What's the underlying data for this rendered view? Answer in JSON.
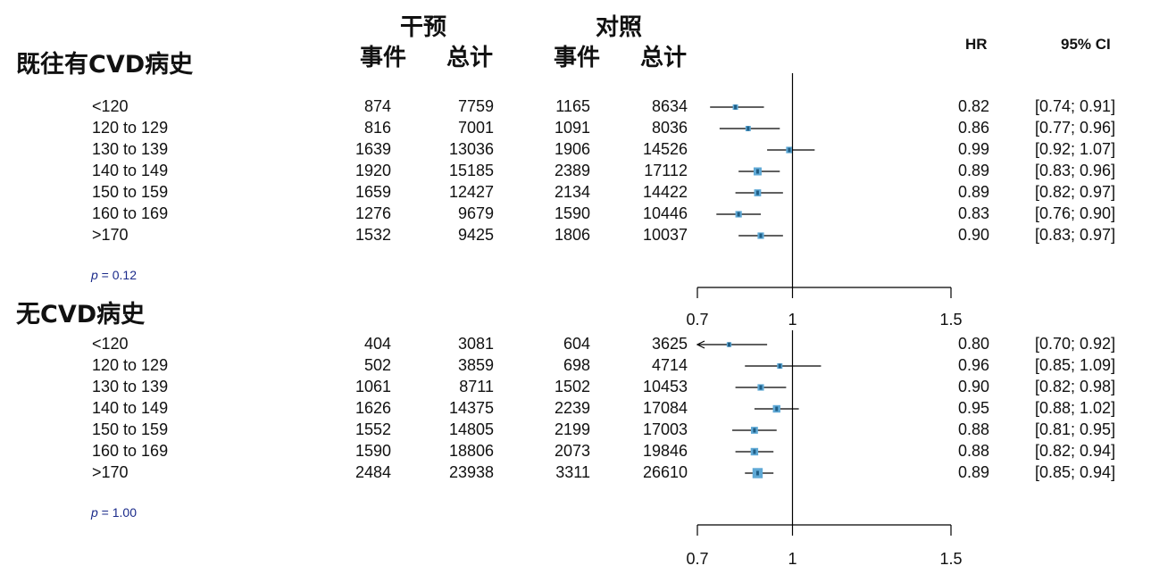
{
  "header": {
    "intervention_label": "干预",
    "control_label": "对照",
    "events_label": "事件",
    "total_label": "总计",
    "hr_label": "HR",
    "ci_label": "95% CI"
  },
  "chart_data": {
    "type": "forest",
    "x_axis": {
      "ticks": [
        "0.7",
        "1",
        "1.5"
      ],
      "reference_line": 1,
      "xlim": [
        0.7,
        1.5
      ]
    },
    "sections": [
      {
        "title": "既往有CVD病史",
        "p_value_label": "p",
        "p_value_text": " = 0.12",
        "rows": [
          {
            "label": "<120",
            "int_events": "874",
            "int_total": "7759",
            "ctl_events": "1165",
            "ctl_total": "8634",
            "hr": 0.82,
            "lo": 0.74,
            "hi": 0.91,
            "hr_text": "0.82",
            "ci_text": "[0.74; 0.91]",
            "weight": 0.5
          },
          {
            "label": "120 to 129",
            "int_events": "816",
            "int_total": "7001",
            "ctl_events": "1091",
            "ctl_total": "8036",
            "hr": 0.86,
            "lo": 0.77,
            "hi": 0.96,
            "hr_text": "0.86",
            "ci_text": "[0.77; 0.96]",
            "weight": 0.5
          },
          {
            "label": "130 to 139",
            "int_events": "1639",
            "int_total": "13036",
            "ctl_events": "1906",
            "ctl_total": "14526",
            "hr": 0.99,
            "lo": 0.92,
            "hi": 1.07,
            "hr_text": "0.99",
            "ci_text": "[0.92; 1.07]",
            "weight": 0.7
          },
          {
            "label": "140 to 149",
            "int_events": "1920",
            "int_total": "15185",
            "ctl_events": "2389",
            "ctl_total": "17112",
            "hr": 0.89,
            "lo": 0.83,
            "hi": 0.96,
            "hr_text": "0.89",
            "ci_text": "[0.83; 0.96]",
            "weight": 1.0
          },
          {
            "label": "150 to 159",
            "int_events": "1659",
            "int_total": "12427",
            "ctl_events": "2134",
            "ctl_total": "14422",
            "hr": 0.89,
            "lo": 0.82,
            "hi": 0.97,
            "hr_text": "0.89",
            "ci_text": "[0.82; 0.97]",
            "weight": 0.8
          },
          {
            "label": "160 to 169",
            "int_events": "1276",
            "int_total": "9679",
            "ctl_events": "1590",
            "ctl_total": "10446",
            "hr": 0.83,
            "lo": 0.76,
            "hi": 0.9,
            "hr_text": "0.83",
            "ci_text": "[0.76; 0.90]",
            "weight": 0.7
          },
          {
            "label": ">170",
            "int_events": "1532",
            "int_total": "9425",
            "ctl_events": "1806",
            "ctl_total": "10037",
            "hr": 0.9,
            "lo": 0.83,
            "hi": 0.97,
            "hr_text": "0.90",
            "ci_text": "[0.83; 0.97]",
            "weight": 0.7
          }
        ]
      },
      {
        "title": "无CVD病史",
        "p_value_label": "p",
        "p_value_text": " = 1.00",
        "rows": [
          {
            "label": "<120",
            "int_events": "404",
            "int_total": "3081",
            "ctl_events": "604",
            "ctl_total": "3625",
            "hr": 0.8,
            "lo": 0.7,
            "hi": 0.92,
            "hr_text": "0.80",
            "ci_text": "[0.70; 0.92]",
            "weight": 0.4,
            "arrow_left": true
          },
          {
            "label": "120 to 129",
            "int_events": "502",
            "int_total": "3859",
            "ctl_events": "698",
            "ctl_total": "4714",
            "hr": 0.96,
            "lo": 0.85,
            "hi": 1.09,
            "hr_text": "0.96",
            "ci_text": "[0.85; 1.09]",
            "weight": 0.5
          },
          {
            "label": "130 to 139",
            "int_events": "1061",
            "int_total": "8711",
            "ctl_events": "1502",
            "ctl_total": "10453",
            "hr": 0.9,
            "lo": 0.82,
            "hi": 0.98,
            "hr_text": "0.90",
            "ci_text": "[0.82; 0.98]",
            "weight": 0.7
          },
          {
            "label": "140 to 149",
            "int_events": "1626",
            "int_total": "14375",
            "ctl_events": "2239",
            "ctl_total": "17084",
            "hr": 0.95,
            "lo": 0.88,
            "hi": 1.02,
            "hr_text": "0.95",
            "ci_text": "[0.88; 1.02]",
            "weight": 0.9
          },
          {
            "label": "150 to 159",
            "int_events": "1552",
            "int_total": "14805",
            "ctl_events": "2199",
            "ctl_total": "17003",
            "hr": 0.88,
            "lo": 0.81,
            "hi": 0.95,
            "hr_text": "0.88",
            "ci_text": "[0.81; 0.95]",
            "weight": 0.8
          },
          {
            "label": "160 to 169",
            "int_events": "1590",
            "int_total": "18806",
            "ctl_events": "2073",
            "ctl_total": "19846",
            "hr": 0.88,
            "lo": 0.82,
            "hi": 0.94,
            "hr_text": "0.88",
            "ci_text": "[0.82; 0.94]",
            "weight": 0.9
          },
          {
            "label": ">170",
            "int_events": "2484",
            "int_total": "23938",
            "ctl_events": "3311",
            "ctl_total": "26610",
            "hr": 0.89,
            "lo": 0.85,
            "hi": 0.94,
            "hr_text": "0.89",
            "ci_text": "[0.85; 0.94]",
            "weight": 1.4
          }
        ]
      }
    ],
    "colors": {
      "box_fill": "#5fa9d6",
      "box_stroke": "#1f5e86",
      "line": "#000000",
      "p_value": "#1a2a8a"
    }
  }
}
